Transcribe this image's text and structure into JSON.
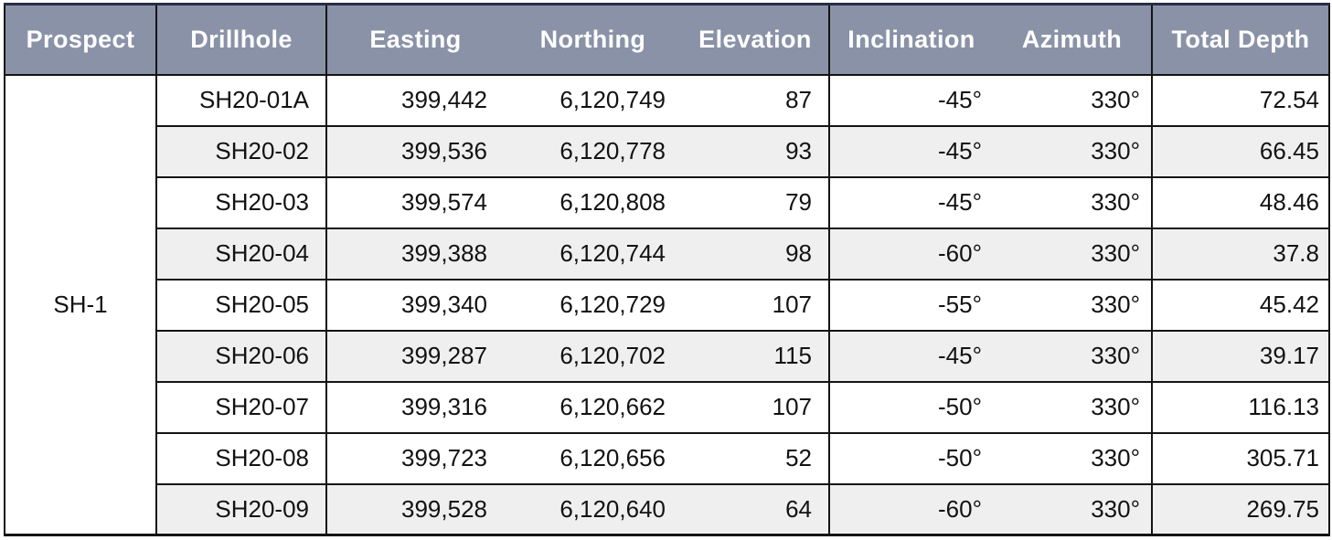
{
  "colors": {
    "header_bg": "#8a92a8",
    "header_text": "#ffffff",
    "row_bg": "#ffffff",
    "row_alt_bg": "#efefef",
    "grid_line": "#141414",
    "top_border": "#272d45",
    "body_text": "#121212"
  },
  "table": {
    "columns": [
      {
        "id": "prospect",
        "label": "Prospect"
      },
      {
        "id": "drillhole",
        "label": "Drillhole"
      },
      {
        "id": "easting",
        "label": "Easting"
      },
      {
        "id": "northing",
        "label": "Northing"
      },
      {
        "id": "elevation",
        "label": "Elevation"
      },
      {
        "id": "inclination",
        "label": "Inclination"
      },
      {
        "id": "azimuth",
        "label": "Azimuth"
      },
      {
        "id": "total_depth",
        "label": "Total Depth"
      }
    ],
    "prospect_group": "SH-1",
    "rows": [
      {
        "drillhole": "SH20-01A",
        "easting": "399,442",
        "northing": "6,120,749",
        "elevation": "87",
        "inclination": "-45°",
        "azimuth": "330°",
        "total_depth": "72.54",
        "shaded": false
      },
      {
        "drillhole": "SH20-02",
        "easting": "399,536",
        "northing": "6,120,778",
        "elevation": "93",
        "inclination": "-45°",
        "azimuth": "330°",
        "total_depth": "66.45",
        "shaded": true
      },
      {
        "drillhole": "SH20-03",
        "easting": "399,574",
        "northing": "6,120,808",
        "elevation": "79",
        "inclination": "-45°",
        "azimuth": "330°",
        "total_depth": "48.46",
        "shaded": false
      },
      {
        "drillhole": "SH20-04",
        "easting": "399,388",
        "northing": "6,120,744",
        "elevation": "98",
        "inclination": "-60°",
        "azimuth": "330°",
        "total_depth": "37.8",
        "shaded": true
      },
      {
        "drillhole": "SH20-05",
        "easting": "399,340",
        "northing": "6,120,729",
        "elevation": "107",
        "inclination": "-55°",
        "azimuth": "330°",
        "total_depth": "45.42",
        "shaded": false
      },
      {
        "drillhole": "SH20-06",
        "easting": "399,287",
        "northing": "6,120,702",
        "elevation": "115",
        "inclination": "-45°",
        "azimuth": "330°",
        "total_depth": "39.17",
        "shaded": true
      },
      {
        "drillhole": "SH20-07",
        "easting": "399,316",
        "northing": "6,120,662",
        "elevation": "107",
        "inclination": "-50°",
        "azimuth": "330°",
        "total_depth": "116.13",
        "shaded": false
      },
      {
        "drillhole": "SH20-08",
        "easting": "399,723",
        "northing": "6,120,656",
        "elevation": "52",
        "inclination": "-50°",
        "azimuth": "330°",
        "total_depth": "305.71",
        "shaded": false
      },
      {
        "drillhole": "SH20-09",
        "easting": "399,528",
        "northing": "6,120,640",
        "elevation": "64",
        "inclination": "-60°",
        "azimuth": "330°",
        "total_depth": "269.75",
        "shaded": true
      }
    ]
  }
}
